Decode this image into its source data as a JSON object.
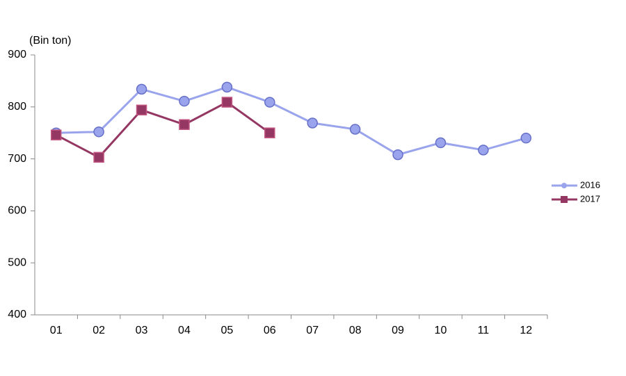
{
  "chart_data": {
    "type": "line",
    "y_label": "(Bin ton)",
    "categories": [
      "01",
      "02",
      "03",
      "04",
      "05",
      "06",
      "07",
      "08",
      "09",
      "10",
      "11",
      "12"
    ],
    "series": [
      {
        "name": "2016",
        "color": "#9aa4ec",
        "marker": "circle",
        "values": [
          750,
          752,
          834,
          811,
          838,
          809,
          769,
          757,
          708,
          731,
          717,
          740
        ]
      },
      {
        "name": "2017",
        "color": "#953763",
        "marker": "square",
        "values": [
          746,
          703,
          794,
          766,
          809,
          750,
          null,
          null,
          null,
          null,
          null,
          null
        ]
      }
    ],
    "ylim": [
      400,
      900
    ],
    "yticks": [
      400,
      500,
      600,
      700,
      800,
      900
    ],
    "grid": false,
    "legend": "right"
  }
}
